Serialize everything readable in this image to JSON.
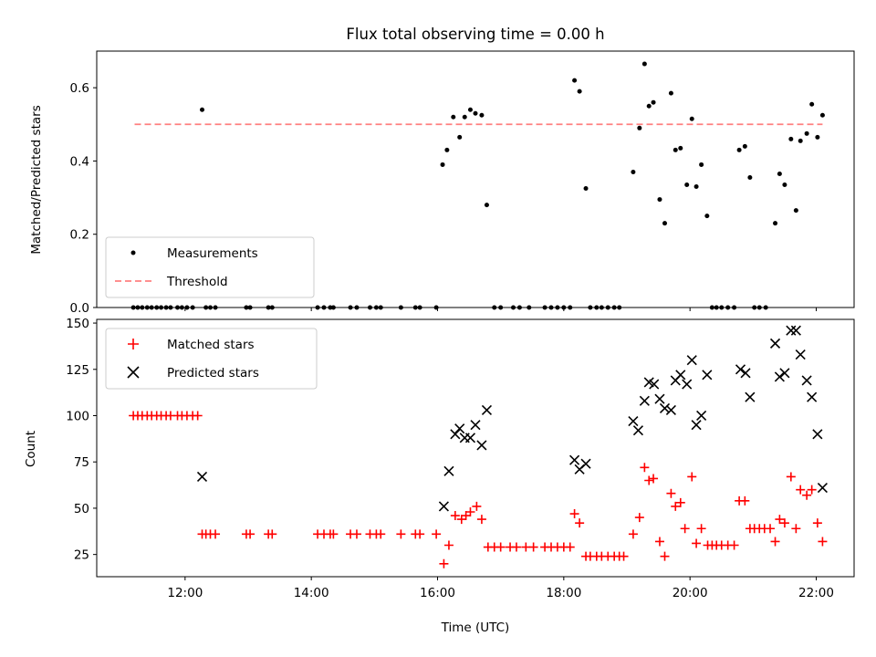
{
  "chart_data": [
    {
      "type": "scatter",
      "title": "Flux total observing time = 0.00 h",
      "xlabel": "",
      "ylabel": "Matched/Predicted stars",
      "xlim": [
        10.6,
        22.6
      ],
      "ylim": [
        0,
        0.7
      ],
      "yticks": [
        0.0,
        0.2,
        0.4,
        0.6
      ],
      "ytick_labels": [
        "0.0",
        "0.2",
        "0.4",
        "0.6"
      ],
      "xticks": [
        12,
        14,
        16,
        18,
        20,
        22
      ],
      "xtick_labels": [],
      "grid": false,
      "legend": "lower-left",
      "series": [
        {
          "name": "Measurements",
          "marker": "dot",
          "color": "#000000",
          "points": [
            [
              11.18,
              0
            ],
            [
              11.25,
              0
            ],
            [
              11.32,
              0
            ],
            [
              11.4,
              0
            ],
            [
              11.47,
              0
            ],
            [
              11.55,
              0
            ],
            [
              11.62,
              0
            ],
            [
              11.7,
              0
            ],
            [
              11.77,
              0
            ],
            [
              11.88,
              0
            ],
            [
              11.95,
              0
            ],
            [
              12.03,
              0
            ],
            [
              12.12,
              0
            ],
            [
              12.27,
              0.54
            ],
            [
              12.33,
              0
            ],
            [
              12.4,
              0
            ],
            [
              12.48,
              0
            ],
            [
              12.97,
              0
            ],
            [
              13.03,
              0
            ],
            [
              13.32,
              0
            ],
            [
              13.38,
              0
            ],
            [
              14.1,
              0
            ],
            [
              14.2,
              0
            ],
            [
              14.3,
              0
            ],
            [
              14.35,
              0
            ],
            [
              14.62,
              0
            ],
            [
              14.72,
              0
            ],
            [
              14.93,
              0
            ],
            [
              15.03,
              0
            ],
            [
              15.1,
              0
            ],
            [
              15.42,
              0
            ],
            [
              15.65,
              0
            ],
            [
              15.72,
              0
            ],
            [
              15.98,
              0
            ],
            [
              16.08,
              0.39
            ],
            [
              16.15,
              0.43
            ],
            [
              16.25,
              0.52
            ],
            [
              16.35,
              0.465
            ],
            [
              16.43,
              0.52
            ],
            [
              16.52,
              0.54
            ],
            [
              16.6,
              0.53
            ],
            [
              16.7,
              0.525
            ],
            [
              16.78,
              0.28
            ],
            [
              16.9,
              0
            ],
            [
              17.0,
              0
            ],
            [
              17.2,
              0
            ],
            [
              17.3,
              0
            ],
            [
              17.45,
              0
            ],
            [
              17.7,
              0
            ],
            [
              17.8,
              0
            ],
            [
              17.9,
              0
            ],
            [
              18.0,
              0
            ],
            [
              18.1,
              0
            ],
            [
              18.17,
              0.62
            ],
            [
              18.25,
              0.59
            ],
            [
              18.35,
              0.325
            ],
            [
              18.42,
              0
            ],
            [
              18.52,
              0
            ],
            [
              18.6,
              0
            ],
            [
              18.7,
              0
            ],
            [
              18.8,
              0
            ],
            [
              18.88,
              0
            ],
            [
              19.1,
              0.37
            ],
            [
              19.2,
              0.49
            ],
            [
              19.28,
              0.665
            ],
            [
              19.35,
              0.55
            ],
            [
              19.42,
              0.56
            ],
            [
              19.52,
              0.295
            ],
            [
              19.6,
              0.23
            ],
            [
              19.7,
              0.585
            ],
            [
              19.77,
              0.43
            ],
            [
              19.85,
              0.435
            ],
            [
              19.95,
              0.335
            ],
            [
              20.03,
              0.515
            ],
            [
              20.1,
              0.33
            ],
            [
              20.18,
              0.39
            ],
            [
              20.27,
              0.25
            ],
            [
              20.35,
              0
            ],
            [
              20.42,
              0
            ],
            [
              20.5,
              0
            ],
            [
              20.6,
              0
            ],
            [
              20.7,
              0
            ],
            [
              20.78,
              0.43
            ],
            [
              20.87,
              0.44
            ],
            [
              20.95,
              0.355
            ],
            [
              21.02,
              0
            ],
            [
              21.1,
              0
            ],
            [
              21.2,
              0
            ],
            [
              21.35,
              0.23
            ],
            [
              21.42,
              0.365
            ],
            [
              21.5,
              0.335
            ],
            [
              21.6,
              0.46
            ],
            [
              21.68,
              0.265
            ],
            [
              21.75,
              0.455
            ],
            [
              21.85,
              0.475
            ],
            [
              21.93,
              0.555
            ],
            [
              22.02,
              0.465
            ],
            [
              22.1,
              0.525
            ]
          ]
        },
        {
          "name": "Threshold",
          "marker": "dashed-line",
          "color": "#ff8080",
          "points": [
            [
              11.2,
              0.5
            ],
            [
              22.1,
              0.5
            ]
          ]
        }
      ]
    },
    {
      "type": "scatter",
      "title": "",
      "xlabel": "Time (UTC)",
      "ylabel": "Count",
      "xlim": [
        10.6,
        22.6
      ],
      "ylim": [
        13,
        152
      ],
      "yticks": [
        25,
        50,
        75,
        100,
        125,
        150
      ],
      "ytick_labels": [
        "25",
        "50",
        "75",
        "100",
        "125",
        "150"
      ],
      "xticks": [
        12,
        14,
        16,
        18,
        20,
        22
      ],
      "xtick_labels": [
        "12:00",
        "14:00",
        "16:00",
        "18:00",
        "20:00",
        "22:00"
      ],
      "grid": false,
      "legend": "top-left",
      "series": [
        {
          "name": "Matched stars",
          "marker": "plus",
          "color": "#ff0000",
          "points": [
            [
              11.18,
              100
            ],
            [
              11.25,
              100
            ],
            [
              11.32,
              100
            ],
            [
              11.4,
              100
            ],
            [
              11.47,
              100
            ],
            [
              11.55,
              100
            ],
            [
              11.62,
              100
            ],
            [
              11.7,
              100
            ],
            [
              11.77,
              100
            ],
            [
              11.88,
              100
            ],
            [
              11.95,
              100
            ],
            [
              12.03,
              100
            ],
            [
              12.12,
              100
            ],
            [
              12.2,
              100
            ],
            [
              12.27,
              36
            ],
            [
              12.33,
              36
            ],
            [
              12.4,
              36
            ],
            [
              12.48,
              36
            ],
            [
              12.97,
              36
            ],
            [
              13.03,
              36
            ],
            [
              13.32,
              36
            ],
            [
              13.38,
              36
            ],
            [
              14.1,
              36
            ],
            [
              14.2,
              36
            ],
            [
              14.3,
              36
            ],
            [
              14.35,
              36
            ],
            [
              14.62,
              36
            ],
            [
              14.72,
              36
            ],
            [
              14.93,
              36
            ],
            [
              15.03,
              36
            ],
            [
              15.1,
              36
            ],
            [
              15.42,
              36
            ],
            [
              15.65,
              36
            ],
            [
              15.72,
              36
            ],
            [
              15.98,
              36
            ],
            [
              16.1,
              20
            ],
            [
              16.18,
              30
            ],
            [
              16.28,
              46
            ],
            [
              16.38,
              44
            ],
            [
              16.45,
              46
            ],
            [
              16.52,
              48
            ],
            [
              16.62,
              51
            ],
            [
              16.7,
              44
            ],
            [
              16.8,
              29
            ],
            [
              16.9,
              29
            ],
            [
              17.0,
              29
            ],
            [
              17.15,
              29
            ],
            [
              17.25,
              29
            ],
            [
              17.4,
              29
            ],
            [
              17.52,
              29
            ],
            [
              17.7,
              29
            ],
            [
              17.8,
              29
            ],
            [
              17.9,
              29
            ],
            [
              18.0,
              29
            ],
            [
              18.1,
              29
            ],
            [
              18.17,
              47
            ],
            [
              18.25,
              42
            ],
            [
              18.35,
              24
            ],
            [
              18.42,
              24
            ],
            [
              18.52,
              24
            ],
            [
              18.6,
              24
            ],
            [
              18.7,
              24
            ],
            [
              18.8,
              24
            ],
            [
              18.88,
              24
            ],
            [
              18.95,
              24
            ],
            [
              19.1,
              36
            ],
            [
              19.2,
              45
            ],
            [
              19.28,
              72
            ],
            [
              19.35,
              65
            ],
            [
              19.42,
              66
            ],
            [
              19.52,
              32
            ],
            [
              19.6,
              24
            ],
            [
              19.7,
              58
            ],
            [
              19.77,
              51
            ],
            [
              19.85,
              53
            ],
            [
              19.92,
              39
            ],
            [
              20.03,
              67
            ],
            [
              20.1,
              31
            ],
            [
              20.18,
              39
            ],
            [
              20.28,
              30
            ],
            [
              20.35,
              30
            ],
            [
              20.42,
              30
            ],
            [
              20.5,
              30
            ],
            [
              20.6,
              30
            ],
            [
              20.7,
              30
            ],
            [
              20.78,
              54
            ],
            [
              20.87,
              54
            ],
            [
              20.95,
              39
            ],
            [
              21.02,
              39
            ],
            [
              21.1,
              39
            ],
            [
              21.18,
              39
            ],
            [
              21.27,
              39
            ],
            [
              21.35,
              32
            ],
            [
              21.42,
              44
            ],
            [
              21.5,
              42
            ],
            [
              21.6,
              67
            ],
            [
              21.68,
              39
            ],
            [
              21.75,
              60
            ],
            [
              21.85,
              57
            ],
            [
              21.93,
              60
            ],
            [
              22.02,
              42
            ],
            [
              22.1,
              32
            ]
          ]
        },
        {
          "name": "Predicted stars",
          "marker": "x",
          "color": "#000000",
          "points": [
            [
              12.27,
              67
            ],
            [
              16.1,
              51
            ],
            [
              16.18,
              70
            ],
            [
              16.28,
              90
            ],
            [
              16.35,
              93
            ],
            [
              16.43,
              88
            ],
            [
              16.52,
              88
            ],
            [
              16.6,
              95
            ],
            [
              16.7,
              84
            ],
            [
              16.78,
              103
            ],
            [
              18.17,
              76
            ],
            [
              18.25,
              71
            ],
            [
              18.35,
              74
            ],
            [
              19.1,
              97
            ],
            [
              19.18,
              92
            ],
            [
              19.28,
              108
            ],
            [
              19.35,
              118
            ],
            [
              19.43,
              117
            ],
            [
              19.52,
              109
            ],
            [
              19.6,
              104
            ],
            [
              19.7,
              103
            ],
            [
              19.77,
              119
            ],
            [
              19.85,
              122
            ],
            [
              19.95,
              117
            ],
            [
              20.03,
              130
            ],
            [
              20.1,
              95
            ],
            [
              20.18,
              100
            ],
            [
              20.27,
              122
            ],
            [
              20.8,
              125
            ],
            [
              20.88,
              123
            ],
            [
              20.95,
              110
            ],
            [
              21.35,
              139
            ],
            [
              21.42,
              121
            ],
            [
              21.5,
              123
            ],
            [
              21.6,
              146
            ],
            [
              21.68,
              146
            ],
            [
              21.75,
              133
            ],
            [
              21.85,
              119
            ],
            [
              21.93,
              110
            ],
            [
              22.02,
              90
            ],
            [
              22.1,
              61
            ]
          ]
        }
      ]
    }
  ]
}
